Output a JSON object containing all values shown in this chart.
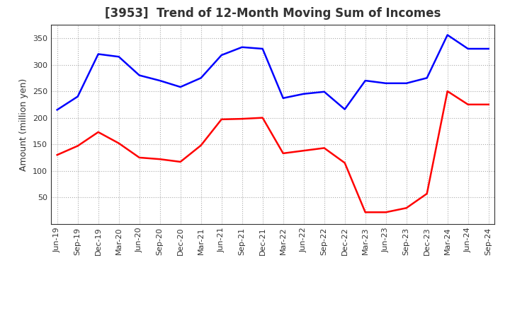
{
  "title": "[3953]  Trend of 12-Month Moving Sum of Incomes",
  "ylabel": "Amount (million yen)",
  "background_color": "#ffffff",
  "plot_bg_color": "#ffffff",
  "grid_color": "#aaaaaa",
  "title_color": "#333333",
  "xlabels": [
    "Jun-19",
    "Sep-19",
    "Dec-19",
    "Mar-20",
    "Jun-20",
    "Sep-20",
    "Dec-20",
    "Mar-21",
    "Jun-21",
    "Sep-21",
    "Dec-21",
    "Mar-22",
    "Jun-22",
    "Sep-22",
    "Dec-22",
    "Mar-23",
    "Jun-23",
    "Sep-23",
    "Dec-23",
    "Mar-24",
    "Jun-24",
    "Sep-24"
  ],
  "ordinary_income": [
    215,
    240,
    320,
    315,
    280,
    270,
    258,
    275,
    318,
    333,
    330,
    237,
    245,
    249,
    216,
    270,
    265,
    265,
    275,
    356,
    330,
    330
  ],
  "net_income": [
    130,
    147,
    173,
    152,
    125,
    122,
    117,
    148,
    197,
    198,
    200,
    133,
    138,
    143,
    115,
    22,
    22,
    30,
    57,
    250,
    225,
    225
  ],
  "ordinary_color": "#0000ff",
  "net_color": "#ff0000",
  "ylim": [
    0,
    375
  ],
  "yticks": [
    50,
    100,
    150,
    200,
    250,
    300,
    350
  ],
  "line_width": 1.8,
  "title_fontsize": 12,
  "tick_fontsize": 8,
  "ylabel_fontsize": 9,
  "legend_fontsize": 9
}
